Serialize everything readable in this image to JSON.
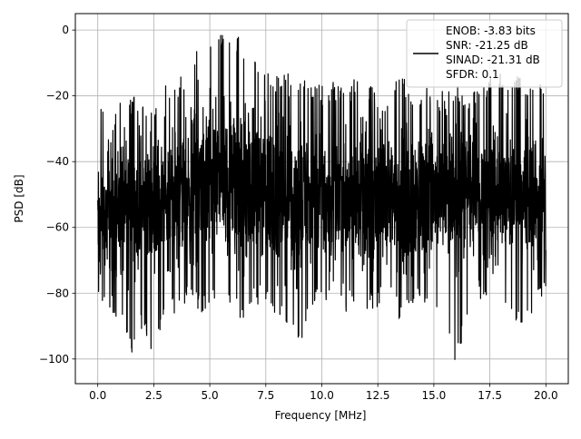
{
  "chart_data": {
    "type": "line",
    "title": "",
    "xlabel": "Frequency [MHz]",
    "ylabel": "PSD [dB]",
    "xlim": [
      -1.0,
      21.0
    ],
    "ylim": [
      -107.5,
      5.0
    ],
    "xticks": [
      0.0,
      2.5,
      5.0,
      7.5,
      10.0,
      12.5,
      15.0,
      17.5,
      20.0
    ],
    "xtick_labels": [
      "0.0",
      "2.5",
      "5.0",
      "7.5",
      "10.0",
      "12.5",
      "15.0",
      "17.5",
      "20.0"
    ],
    "yticks": [
      0,
      -20,
      -40,
      -60,
      -80,
      -100
    ],
    "ytick_labels": [
      "0",
      "−20",
      "−40",
      "−60",
      "−80",
      "−100"
    ],
    "grid": true,
    "legend_position": "upper-right",
    "line_color": "#000000",
    "series": [
      {
        "name": "ENOB: -3.83 bits\nSNR: -21.25 dB\nSINAD: -21.31 dB\nSFDR: 0.1",
        "legend_lines": [
          "ENOB: -3.83 bits",
          "SNR: -21.25 dB",
          "SINAD: -21.31 dB",
          "SFDR: 0.1"
        ],
        "x": [
          0.0,
          0.5,
          1.0,
          1.5,
          2.0,
          2.5,
          3.0,
          3.5,
          4.0,
          4.5,
          5.0,
          5.5,
          6.0,
          6.5,
          7.0,
          7.5,
          8.0,
          8.5,
          9.0,
          9.5,
          10.0,
          10.5,
          11.0,
          11.5,
          12.0,
          12.5,
          13.0,
          13.5,
          14.0,
          14.5,
          15.0,
          15.5,
          16.0,
          16.5,
          17.0,
          17.5,
          18.0,
          18.5,
          19.0,
          19.5,
          20.0
        ],
        "upper_envelope": [
          -17,
          -30,
          -20,
          -20,
          -20,
          -22,
          -17,
          -15,
          -12,
          -5,
          0,
          0,
          -1,
          -3,
          -8,
          -10,
          -14,
          -12,
          -15,
          -15,
          -17,
          -15,
          -18,
          -14,
          -15,
          -18,
          -20,
          -12,
          -18,
          -18,
          -17,
          -19,
          -17,
          -18,
          -18,
          -13,
          -13,
          -15,
          -13,
          -17,
          -15
        ],
        "lower_envelope": [
          -82,
          -86,
          -88,
          -100,
          -90,
          -100,
          -86,
          -86,
          -83,
          -86,
          -85,
          -82,
          -86,
          -89,
          -84,
          -85,
          -87,
          -90,
          -97,
          -84,
          -85,
          -82,
          -86,
          -83,
          -86,
          -84,
          -82,
          -89,
          -84,
          -84,
          -85,
          -89,
          -102,
          -88,
          -82,
          -85,
          -85,
          -88,
          -90,
          -85,
          -82
        ],
        "mean": [
          -58,
          -56,
          -55,
          -54,
          -53,
          -52,
          -51,
          -50,
          -48,
          -46,
          -45,
          -45,
          -46,
          -47,
          -48,
          -49,
          -50,
          -51,
          -51,
          -51,
          -51,
          -51,
          -51,
          -51,
          -51,
          -51,
          -51,
          -51,
          -51,
          -51,
          -51,
          -51,
          -51,
          -51,
          -51,
          -51,
          -51,
          -51,
          -51,
          -51,
          -51
        ]
      }
    ]
  }
}
